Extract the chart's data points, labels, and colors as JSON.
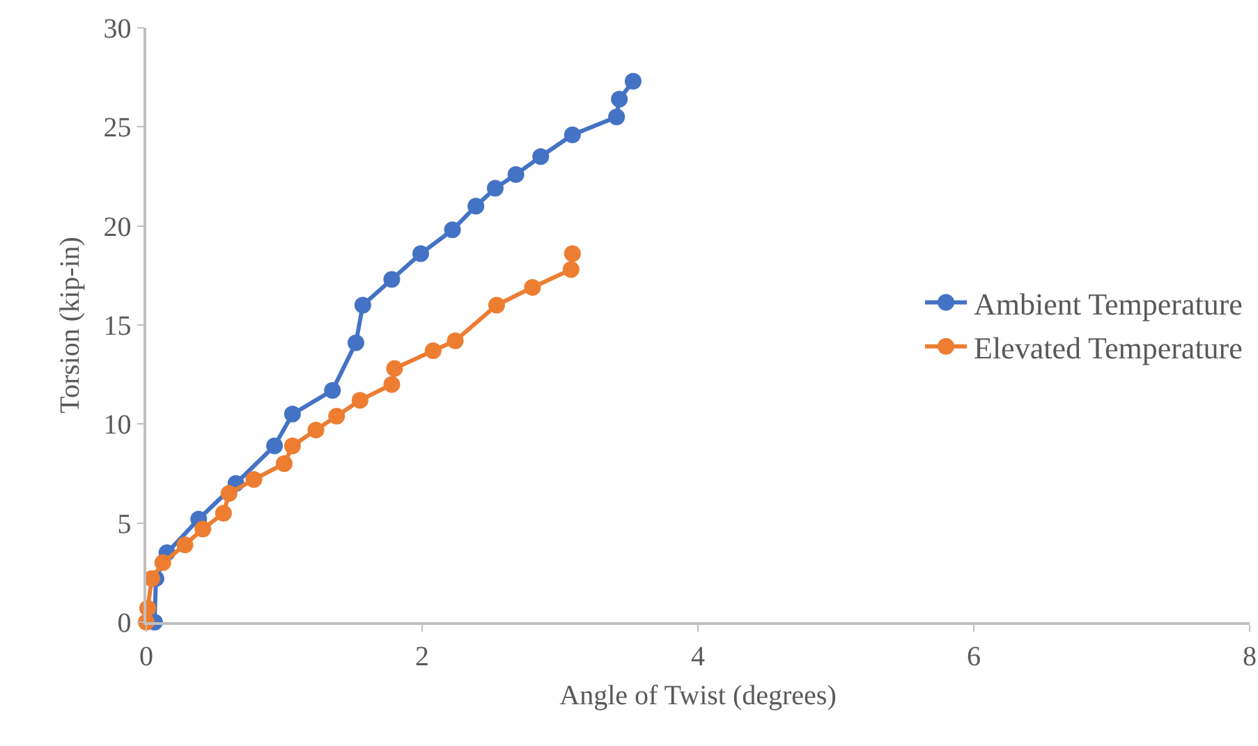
{
  "chart_data": {
    "type": "line",
    "xlabel": "Angle of Twist (degrees)",
    "ylabel": "Torsion (kip-in)",
    "xlim": [
      0,
      8
    ],
    "xticks": [
      0,
      2,
      4,
      6,
      8
    ],
    "ylim": [
      0,
      30
    ],
    "yticks": [
      0,
      5,
      10,
      15,
      20,
      25,
      30
    ],
    "grid": false,
    "legend": "right",
    "marker": "circle",
    "line_style": "solid",
    "series": [
      {
        "name": "Ambient Temperature",
        "color": "#4472c4",
        "x": [
          0.06,
          0.07,
          0.15,
          0.38,
          0.65,
          0.93,
          1.06,
          1.35,
          1.52,
          1.57,
          1.78,
          1.99,
          2.22,
          2.39,
          2.53,
          2.68,
          2.86,
          3.09,
          3.41,
          3.43,
          3.53
        ],
        "values": [
          0,
          2.2,
          3.5,
          5.2,
          7.0,
          8.9,
          10.5,
          11.7,
          14.1,
          16.0,
          17.3,
          18.6,
          19.8,
          21.0,
          21.9,
          22.6,
          23.5,
          24.6,
          25.5,
          26.4,
          27.3
        ]
      },
      {
        "name": "Elevated Temperature",
        "color": "#ed7d31",
        "x": [
          0,
          0.01,
          0.04,
          0.12,
          0.28,
          0.41,
          0.56,
          0.6,
          0.78,
          1.0,
          1.06,
          1.23,
          1.38,
          1.55,
          1.78,
          1.8,
          2.08,
          2.24,
          2.54,
          2.8,
          3.08,
          3.09
        ],
        "values": [
          0,
          0.7,
          2.2,
          3.0,
          3.9,
          4.7,
          5.5,
          6.5,
          7.2,
          8.0,
          8.9,
          9.7,
          10.4,
          11.2,
          12.0,
          12.8,
          13.7,
          14.2,
          16.0,
          16.9,
          17.8,
          18.6
        ]
      }
    ]
  }
}
